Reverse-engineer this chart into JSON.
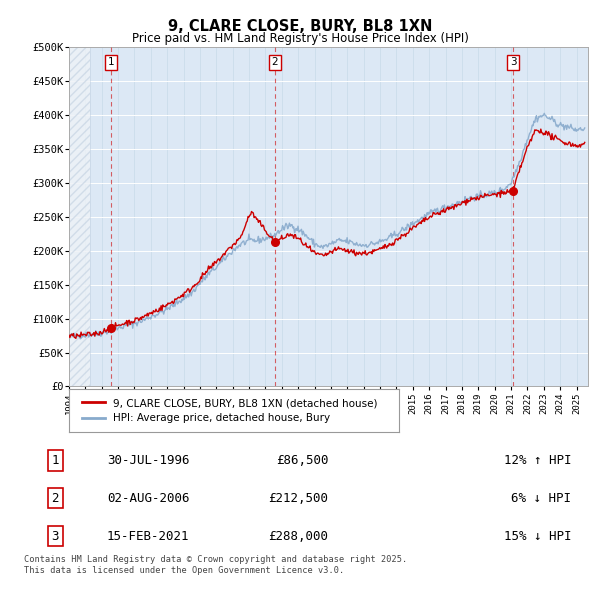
{
  "title": "9, CLARE CLOSE, BURY, BL8 1XN",
  "subtitle": "Price paid vs. HM Land Registry's House Price Index (HPI)",
  "sale_prices": [
    86500,
    212500,
    288000
  ],
  "sale_labels": [
    "1",
    "2",
    "3"
  ],
  "sale_info": [
    [
      "1",
      "30-JUL-1996",
      "£86,500",
      "12% ↑ HPI"
    ],
    [
      "2",
      "02-AUG-2006",
      "£212,500",
      "6% ↓ HPI"
    ],
    [
      "3",
      "15-FEB-2021",
      "£288,000",
      "15% ↓ HPI"
    ]
  ],
  "legend_line1": "9, CLARE CLOSE, BURY, BL8 1XN (detached house)",
  "legend_line2": "HPI: Average price, detached house, Bury",
  "footer": "Contains HM Land Registry data © Crown copyright and database right 2025.\nThis data is licensed under the Open Government Licence v3.0.",
  "red_color": "#cc0000",
  "blue_color": "#88aacc",
  "ylim": [
    0,
    500000
  ],
  "yticks": [
    0,
    50000,
    100000,
    150000,
    200000,
    250000,
    300000,
    350000,
    400000,
    450000,
    500000
  ],
  "ytick_labels": [
    "£0",
    "£50K",
    "£100K",
    "£150K",
    "£200K",
    "£250K",
    "£300K",
    "£350K",
    "£400K",
    "£450K",
    "£500K"
  ],
  "xlim_start": 1994.0,
  "xlim_end": 2025.7,
  "background_color": "#dce8f5",
  "hatch_color": "#c0cfe0",
  "grid_color": "#b8cfe0",
  "hpi_anchors": [
    [
      1994.0,
      74000
    ],
    [
      1994.5,
      74500
    ],
    [
      1995.0,
      76000
    ],
    [
      1995.5,
      77000
    ],
    [
      1996.0,
      79000
    ],
    [
      1996.5,
      82000
    ],
    [
      1997.0,
      86000
    ],
    [
      1997.5,
      90000
    ],
    [
      1998.0,
      93000
    ],
    [
      1998.5,
      97000
    ],
    [
      1999.0,
      103000
    ],
    [
      1999.5,
      108000
    ],
    [
      2000.0,
      114000
    ],
    [
      2000.5,
      122000
    ],
    [
      2001.0,
      130000
    ],
    [
      2001.5,
      138000
    ],
    [
      2002.0,
      152000
    ],
    [
      2002.5,
      165000
    ],
    [
      2003.0,
      176000
    ],
    [
      2003.5,
      188000
    ],
    [
      2004.0,
      200000
    ],
    [
      2004.5,
      210000
    ],
    [
      2005.0,
      215000
    ],
    [
      2005.5,
      215000
    ],
    [
      2006.0,
      218000
    ],
    [
      2006.5,
      222000
    ],
    [
      2007.0,
      232000
    ],
    [
      2007.5,
      238000
    ],
    [
      2008.0,
      232000
    ],
    [
      2008.5,
      222000
    ],
    [
      2009.0,
      210000
    ],
    [
      2009.5,
      205000
    ],
    [
      2010.0,
      210000
    ],
    [
      2010.5,
      215000
    ],
    [
      2011.0,
      214000
    ],
    [
      2011.5,
      210000
    ],
    [
      2012.0,
      208000
    ],
    [
      2012.5,
      210000
    ],
    [
      2013.0,
      213000
    ],
    [
      2013.5,
      218000
    ],
    [
      2014.0,
      225000
    ],
    [
      2014.5,
      232000
    ],
    [
      2015.0,
      240000
    ],
    [
      2015.5,
      247000
    ],
    [
      2016.0,
      254000
    ],
    [
      2016.5,
      260000
    ],
    [
      2017.0,
      264000
    ],
    [
      2017.5,
      268000
    ],
    [
      2018.0,
      273000
    ],
    [
      2018.5,
      278000
    ],
    [
      2019.0,
      280000
    ],
    [
      2019.5,
      283000
    ],
    [
      2020.0,
      285000
    ],
    [
      2020.5,
      290000
    ],
    [
      2021.0,
      300000
    ],
    [
      2021.5,
      330000
    ],
    [
      2022.0,
      365000
    ],
    [
      2022.5,
      395000
    ],
    [
      2023.0,
      400000
    ],
    [
      2023.5,
      393000
    ],
    [
      2024.0,
      385000
    ],
    [
      2024.5,
      382000
    ],
    [
      2025.0,
      378000
    ],
    [
      2025.5,
      380000
    ]
  ],
  "red_anchors": [
    [
      1994.0,
      74000
    ],
    [
      1994.5,
      74500
    ],
    [
      1995.0,
      76000
    ],
    [
      1995.5,
      77000
    ],
    [
      1996.0,
      80000
    ],
    [
      1996.5,
      86500
    ],
    [
      1997.0,
      90000
    ],
    [
      1997.5,
      94000
    ],
    [
      1998.0,
      97000
    ],
    [
      1998.5,
      102000
    ],
    [
      1999.0,
      108000
    ],
    [
      1999.5,
      114000
    ],
    [
      2000.0,
      120000
    ],
    [
      2000.5,
      128000
    ],
    [
      2001.0,
      136000
    ],
    [
      2001.5,
      145000
    ],
    [
      2002.0,
      158000
    ],
    [
      2002.5,
      172000
    ],
    [
      2003.0,
      183000
    ],
    [
      2003.5,
      196000
    ],
    [
      2004.0,
      208000
    ],
    [
      2004.5,
      220000
    ],
    [
      2005.0,
      252000
    ],
    [
      2005.2,
      256000
    ],
    [
      2005.4,
      248000
    ],
    [
      2005.6,
      242000
    ],
    [
      2006.0,
      230000
    ],
    [
      2006.58,
      212500
    ],
    [
      2007.0,
      218000
    ],
    [
      2007.5,
      224000
    ],
    [
      2008.0,
      218000
    ],
    [
      2008.5,
      207000
    ],
    [
      2009.0,
      196000
    ],
    [
      2009.5,
      192000
    ],
    [
      2010.0,
      198000
    ],
    [
      2010.5,
      203000
    ],
    [
      2011.0,
      200000
    ],
    [
      2011.5,
      197000
    ],
    [
      2012.0,
      196000
    ],
    [
      2012.5,
      198000
    ],
    [
      2013.0,
      202000
    ],
    [
      2013.5,
      208000
    ],
    [
      2014.0,
      216000
    ],
    [
      2014.5,
      224000
    ],
    [
      2015.0,
      233000
    ],
    [
      2015.5,
      241000
    ],
    [
      2016.0,
      249000
    ],
    [
      2016.5,
      255000
    ],
    [
      2017.0,
      260000
    ],
    [
      2017.5,
      264000
    ],
    [
      2018.0,
      270000
    ],
    [
      2018.5,
      276000
    ],
    [
      2019.0,
      278000
    ],
    [
      2019.5,
      281000
    ],
    [
      2020.0,
      283000
    ],
    [
      2020.5,
      285000
    ],
    [
      2021.12,
      288000
    ],
    [
      2021.5,
      318000
    ],
    [
      2022.0,
      352000
    ],
    [
      2022.5,
      378000
    ],
    [
      2023.0,
      375000
    ],
    [
      2023.5,
      368000
    ],
    [
      2024.0,
      362000
    ],
    [
      2024.5,
      358000
    ],
    [
      2025.0,
      355000
    ],
    [
      2025.5,
      357000
    ]
  ],
  "sale_year_dec": [
    1996.578,
    2006.583,
    2021.12
  ]
}
